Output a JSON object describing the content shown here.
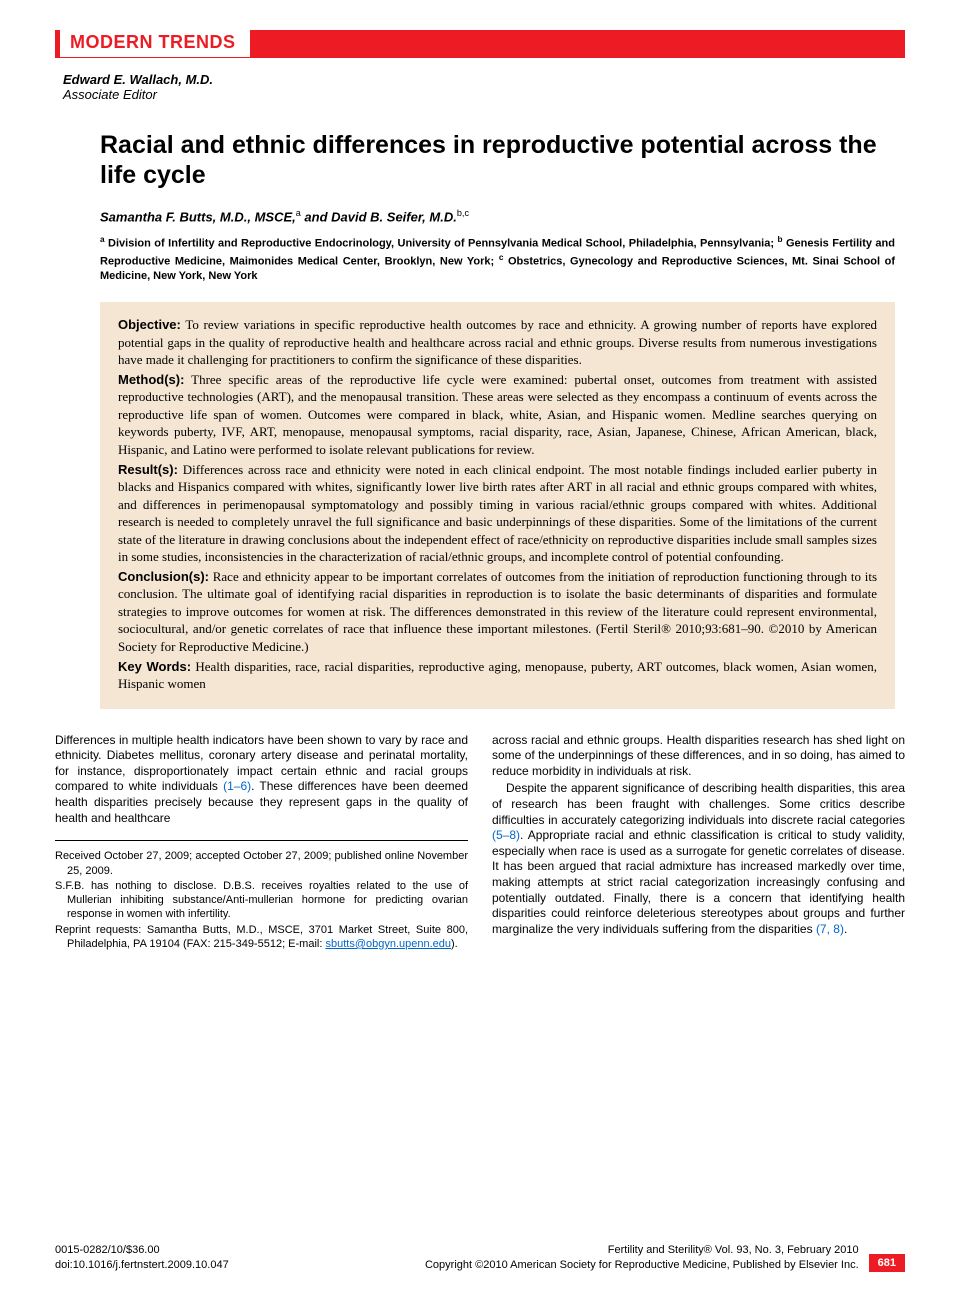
{
  "colors": {
    "accent": "#ed1c24",
    "abstract_bg": "#f5e6d3",
    "link": "#0066cc",
    "text": "#000000",
    "background": "#ffffff"
  },
  "typography": {
    "section_label_size": 18,
    "title_size": 25,
    "authors_size": 13,
    "affiliations_size": 11,
    "abstract_size": 13,
    "body_size": 12,
    "notes_size": 11,
    "footer_size": 11,
    "editor_size": 13
  },
  "section_label": "MODERN TRENDS",
  "editor": {
    "name": "Edward E. Wallach, M.D.",
    "role": "Associate Editor"
  },
  "title": "Racial and ethnic differences in reproductive potential across the life cycle",
  "authors_html": "Samantha F. Butts, M.D., MSCE,<sup>a</sup> and David B. Seifer, M.D.<sup>b,c</sup>",
  "affiliations_html": "<sup>a</sup> Division of Infertility and Reproductive Endocrinology, University of Pennsylvania Medical School, Philadelphia, Pennsylvania; <sup>b</sup> Genesis Fertility and Reproductive Medicine, Maimonides Medical Center, Brooklyn, New York; <sup>c</sup> Obstetrics, Gynecology and Reproductive Sciences, Mt. Sinai School of Medicine, New York, New York",
  "abstract": {
    "objective": {
      "label": "Objective:",
      "text": "To review variations in specific reproductive health outcomes by race and ethnicity. A growing number of reports have explored potential gaps in the quality of reproductive health and healthcare across racial and ethnic groups. Diverse results from numerous investigations have made it challenging for practitioners to confirm the significance of these disparities."
    },
    "methods": {
      "label": "Method(s):",
      "text": "Three specific areas of the reproductive life cycle were examined: pubertal onset, outcomes from treatment with assisted reproductive technologies (ART), and the menopausal transition. These areas were selected as they encompass a continuum of events across the reproductive life span of women. Outcomes were compared in black, white, Asian, and Hispanic women. Medline searches querying on keywords puberty, IVF, ART, menopause, menopausal symptoms, racial disparity, race, Asian, Japanese, Chinese, African American, black, Hispanic, and Latino were performed to isolate relevant publications for review."
    },
    "results": {
      "label": "Result(s):",
      "text": "Differences across race and ethnicity were noted in each clinical endpoint. The most notable findings included earlier puberty in blacks and Hispanics compared with whites, significantly lower live birth rates after ART in all racial and ethnic groups compared with whites, and differences in perimenopausal symptomatology and possibly timing in various racial/ethnic groups compared with whites. Additional research is needed to completely unravel the full significance and basic underpinnings of these disparities. Some of the limitations of the current state of the literature in drawing conclusions about the independent effect of race/ethnicity on reproductive disparities include small samples sizes in some studies, inconsistencies in the characterization of racial/ethnic groups, and incomplete control of potential confounding."
    },
    "conclusions": {
      "label": "Conclusion(s):",
      "text": "Race and ethnicity appear to be important correlates of outcomes from the initiation of reproduction functioning through to its conclusion. The ultimate goal of identifying racial disparities in reproduction is to isolate the basic determinants of disparities and formulate strategies to improve outcomes for women at risk. The differences demonstrated in this review of the literature could represent environmental, sociocultural, and/or genetic correlates of race that influence these important milestones. (Fertil Steril® 2010;93:681–90. ©2010 by American Society for Reproductive Medicine.)"
    },
    "keywords": {
      "label": "Key Words:",
      "text": "Health disparities, race, racial disparities, reproductive aging, menopause, puberty, ART outcomes, black women, Asian women, Hispanic women"
    }
  },
  "body": {
    "left": {
      "p1_pre": "Differences in multiple health indicators have been shown to vary by race and ethnicity. Diabetes mellitus, coronary artery disease and perinatal mortality, for instance, disproportionately impact certain ethnic and racial groups compared to white individuals ",
      "p1_ref": "(1–6)",
      "p1_post": ". These differences have been deemed health disparities precisely because they represent gaps in the quality of health and healthcare"
    },
    "right": {
      "p1": "across racial and ethnic groups. Health disparities research has shed light on some of the underpinnings of these differences, and in so doing, has aimed to reduce morbidity in individuals at risk.",
      "p2_pre": "Despite the apparent significance of describing health disparities, this area of research has been fraught with challenges. Some critics describe difficulties in accurately categorizing individuals into discrete racial categories ",
      "p2_ref1": "(5–8)",
      "p2_mid": ". Appropriate racial and ethnic classification is critical to study validity, especially when race is used as a surrogate for genetic correlates of disease. It has been argued that racial admixture has increased markedly over time, making attempts at strict racial categorization increasingly confusing and potentially outdated. Finally, there is a concern that identifying health disparities could reinforce deleterious stereotypes about groups and further marginalize the very individuals suffering from the disparities ",
      "p2_ref2": "(7, 8)",
      "p2_post": "."
    }
  },
  "notes": {
    "received": "Received October 27, 2009; accepted October 27, 2009; published online November 25, 2009.",
    "disclosure": "S.F.B. has nothing to disclose. D.B.S. receives royalties related to the use of Mullerian inhibiting substance/Anti-mullerian hormone for predicting ovarian response in women with infertility.",
    "reprint_pre": "Reprint requests: Samantha Butts, M.D., MSCE, 3701 Market Street, Suite 800, Philadelphia, PA 19104 (FAX: 215-349-5512; E-mail: ",
    "reprint_email": "sbutts@obgyn.upenn.edu",
    "reprint_post": ")."
  },
  "footer": {
    "issn_price": "0015-0282/10/$36.00",
    "doi": "doi:10.1016/j.fertnstert.2009.10.047",
    "journal": "Fertility and Sterility® Vol. 93, No. 3, February 2010",
    "copyright": "Copyright ©2010 American Society for Reproductive Medicine, Published by Elsevier Inc.",
    "page": "681"
  }
}
